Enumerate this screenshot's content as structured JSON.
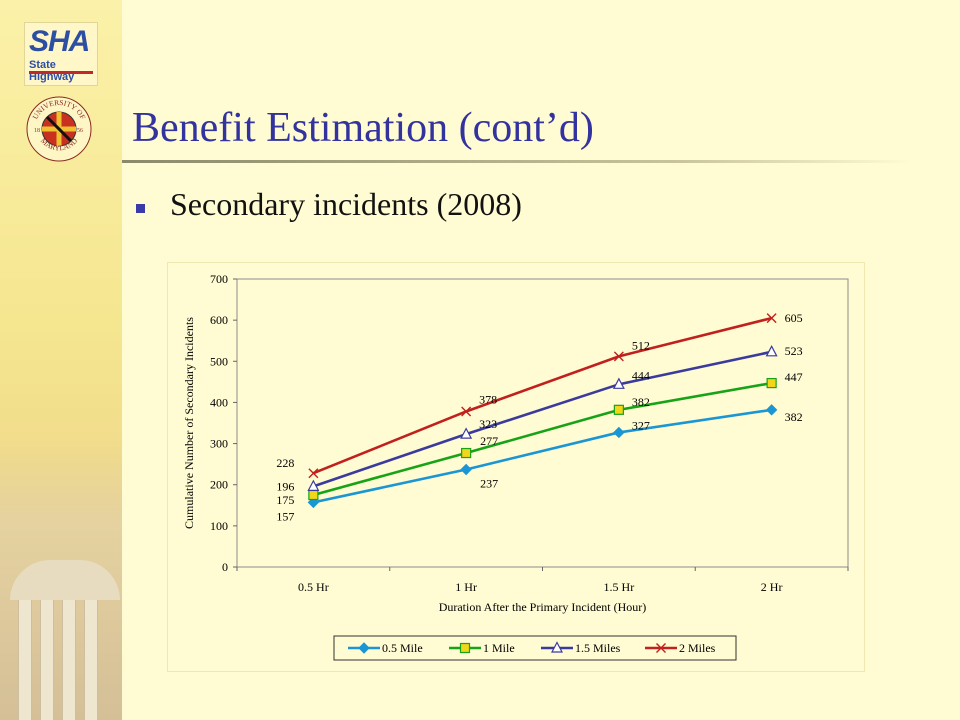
{
  "slide": {
    "title": "Benefit Estimation (cont’d)",
    "bullet": "Secondary incidents (2008)",
    "logo_sha": {
      "main": "SHA",
      "sub": "State Highway"
    },
    "logo_umd": {
      "text_top": "UNIVERSITY OF",
      "text_bottom": "MARYLAND",
      "year_left": "18",
      "year_right": "56"
    }
  },
  "chart_data": {
    "type": "line",
    "categories": [
      "0.5 Hr",
      "1 Hr",
      "1.5 Hr",
      "2 Hr"
    ],
    "xlabel": "Duration After the Primary Incident (Hour)",
    "ylabel": "Cumulative Number of Secondary Incidents",
    "ylim": [
      0,
      700
    ],
    "yticks": [
      0,
      100,
      200,
      300,
      400,
      500,
      600,
      700
    ],
    "grid": false,
    "legend": "bottom",
    "series": [
      {
        "name": "0.5 Mile",
        "values": [
          157,
          237,
          327,
          382
        ],
        "color": "#1a96d4",
        "marker": "diamond"
      },
      {
        "name": "1 Mile",
        "values": [
          175,
          277,
          382,
          447
        ],
        "color": "#17a317",
        "marker": "square"
      },
      {
        "name": "1.5 Miles",
        "values": [
          196,
          323,
          444,
          523
        ],
        "color": "#3b3b9e",
        "marker": "triangle"
      },
      {
        "name": "2 Miles",
        "values": [
          228,
          378,
          512,
          605
        ],
        "color": "#c0201e",
        "marker": "x"
      }
    ]
  }
}
